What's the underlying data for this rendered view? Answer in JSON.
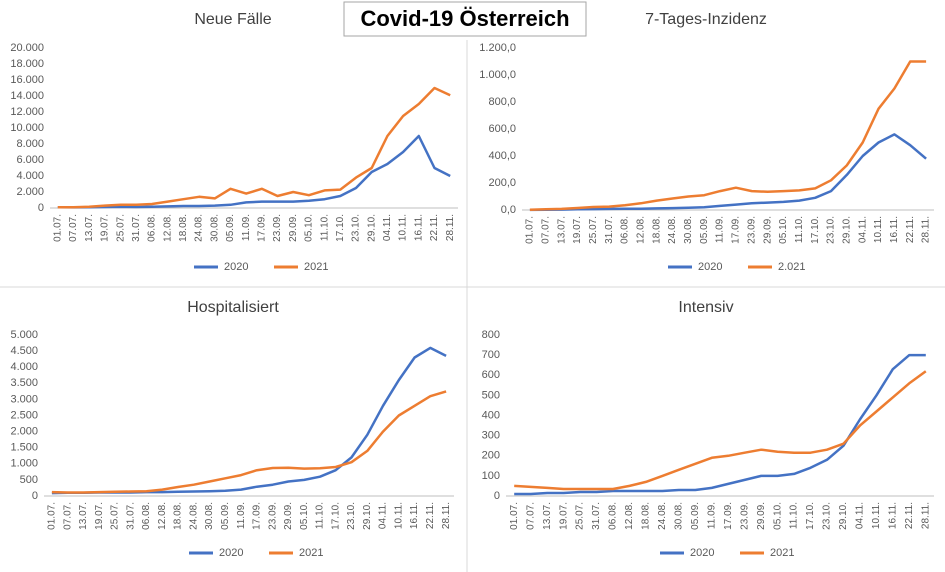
{
  "title": "Covid-19 Österreich",
  "chart_data": [
    {
      "type": "line",
      "title": "Neue Fälle",
      "categories": [
        "01.07.",
        "07.07.",
        "13.07.",
        "19.07.",
        "25.07.",
        "31.07.",
        "06.08.",
        "12.08.",
        "18.08.",
        "24.08.",
        "30.08.",
        "05.09.",
        "11.09.",
        "17.09.",
        "23.09.",
        "29.09.",
        "05.10.",
        "11.10.",
        "17.10.",
        "23.10.",
        "29.10.",
        "04.11.",
        "10.11.",
        "16.11.",
        "22.11.",
        "28.11."
      ],
      "series": [
        {
          "name": "2020",
          "color": "#4472c4",
          "values": [
            100,
            80,
            100,
            120,
            150,
            120,
            150,
            200,
            250,
            250,
            300,
            400,
            700,
            800,
            800,
            800,
            900,
            1100,
            1500,
            2500,
            4500,
            5500,
            7000,
            9000,
            5000,
            4000
          ]
        },
        {
          "name": "2021",
          "color": "#ed7d31",
          "values": [
            100,
            100,
            150,
            300,
            400,
            400,
            500,
            800,
            1100,
            1400,
            1200,
            2400,
            1800,
            2400,
            1500,
            2000,
            1600,
            2200,
            2300,
            3800,
            5000,
            9000,
            11500,
            13000,
            15000,
            14100
          ]
        }
      ],
      "ylim": [
        0,
        20000
      ],
      "yticks": [
        0,
        {
          "value": 2000,
          "label": "2.000"
        },
        {
          "value": 4000,
          "label": "4.000"
        },
        {
          "value": 6000,
          "label": "6.000"
        },
        {
          "value": 8000,
          "label": "8.000"
        },
        {
          "value": 10000,
          "label": "10.000"
        },
        {
          "value": 12000,
          "label": "12.000"
        },
        {
          "value": 14000,
          "label": "14.000"
        },
        {
          "value": 16000,
          "label": "16.000"
        },
        {
          "value": 18000,
          "label": "18.000"
        },
        {
          "value": 20000,
          "label": "20.000"
        }
      ],
      "grid": false
    },
    {
      "type": "line",
      "title": "7-Tages-Inzidenz",
      "categories": [
        "01.07.",
        "07.07.",
        "13.07.",
        "19.07.",
        "25.07.",
        "31.07.",
        "06.08.",
        "12.08.",
        "18.08.",
        "24.08.",
        "30.08.",
        "05.09.",
        "11.09.",
        "17.09.",
        "23.09.",
        "29.09.",
        "05.10.",
        "11.10.",
        "17.10.",
        "23.10.",
        "29.10.",
        "04.11.",
        "10.11.",
        "16.11.",
        "22.11.",
        "28.11."
      ],
      "series": [
        {
          "name": "2020",
          "color": "#4472c4",
          "values": [
            1,
            2,
            3,
            5,
            7,
            8,
            9,
            10,
            12,
            14,
            16,
            20,
            30,
            40,
            50,
            55,
            60,
            70,
            90,
            140,
            260,
            400,
            500,
            560,
            480,
            380
          ]
        },
        {
          "name": "2.021",
          "color": "#ed7d31",
          "values": [
            2,
            5,
            8,
            15,
            22,
            25,
            35,
            50,
            70,
            85,
            100,
            110,
            140,
            165,
            140,
            135,
            140,
            145,
            160,
            220,
            330,
            500,
            750,
            900,
            1100,
            1100
          ]
        }
      ],
      "ylim": [
        0,
        1200
      ],
      "yticks": [
        {
          "value": 0,
          "label": "0,0"
        },
        {
          "value": 200,
          "label": "200,0"
        },
        {
          "value": 400,
          "label": "400,0"
        },
        {
          "value": 600,
          "label": "600,0"
        },
        {
          "value": 800,
          "label": "800,0"
        },
        {
          "value": 1000,
          "label": "1.000,0"
        },
        {
          "value": 1200,
          "label": "1.200,0"
        }
      ],
      "grid": false
    },
    {
      "type": "line",
      "title": "Hospitalisiert",
      "categories": [
        "01.07.",
        "07.07.",
        "13.07.",
        "19.07.",
        "25.07.",
        "31.07.",
        "06.08.",
        "12.08.",
        "18.08.",
        "24.08.",
        "30.08.",
        "05.09.",
        "11.09.",
        "17.09.",
        "23.09.",
        "29.09.",
        "05.10.",
        "11.10.",
        "17.10.",
        "23.10.",
        "29.10.",
        "04.11.",
        "10.11.",
        "16.11.",
        "22.11.",
        "28.11."
      ],
      "series": [
        {
          "name": "2020",
          "color": "#4472c4",
          "values": [
            90,
            100,
            100,
            110,
            110,
            110,
            120,
            120,
            130,
            140,
            150,
            160,
            200,
            290,
            350,
            450,
            500,
            600,
            800,
            1200,
            1900,
            2800,
            3600,
            4300,
            4600,
            4350
          ]
        },
        {
          "name": "2021",
          "color": "#ed7d31",
          "values": [
            120,
            110,
            110,
            120,
            130,
            140,
            150,
            200,
            280,
            350,
            450,
            550,
            650,
            800,
            870,
            880,
            850,
            860,
            900,
            1050,
            1400,
            2000,
            2500,
            2800,
            3100,
            3250
          ]
        }
      ],
      "ylim": [
        0,
        5000
      ],
      "yticks": [
        0,
        500,
        {
          "value": 1000,
          "label": "1.000"
        },
        {
          "value": 1500,
          "label": "1.500"
        },
        {
          "value": 2000,
          "label": "2.000"
        },
        {
          "value": 2500,
          "label": "2.500"
        },
        {
          "value": 3000,
          "label": "3.000"
        },
        {
          "value": 3500,
          "label": "3.500"
        },
        {
          "value": 4000,
          "label": "4.000"
        },
        {
          "value": 4500,
          "label": "4.500"
        },
        {
          "value": 5000,
          "label": "5.000"
        }
      ],
      "grid": false
    },
    {
      "type": "line",
      "title": "Intensiv",
      "categories": [
        "01.07.",
        "07.07.",
        "13.07.",
        "19.07.",
        "25.07.",
        "31.07.",
        "06.08.",
        "12.08.",
        "18.08.",
        "24.08.",
        "30.08.",
        "05.09.",
        "11.09.",
        "17.09.",
        "23.09.",
        "29.09.",
        "05.10.",
        "11.10.",
        "17.10.",
        "23.10.",
        "29.10.",
        "04.11.",
        "10.11.",
        "16.11.",
        "22.11.",
        "28.11."
      ],
      "series": [
        {
          "name": "2020",
          "color": "#4472c4",
          "values": [
            10,
            10,
            15,
            15,
            20,
            20,
            25,
            25,
            25,
            25,
            30,
            30,
            40,
            60,
            80,
            100,
            100,
            110,
            140,
            180,
            250,
            380,
            500,
            630,
            700,
            700
          ]
        },
        {
          "name": "2021",
          "color": "#ed7d31",
          "values": [
            50,
            45,
            40,
            35,
            35,
            35,
            35,
            50,
            70,
            100,
            130,
            160,
            190,
            200,
            215,
            230,
            220,
            215,
            215,
            230,
            260,
            350,
            420,
            490,
            560,
            620
          ]
        }
      ],
      "ylim": [
        0,
        800
      ],
      "yticks": [
        0,
        100,
        200,
        300,
        400,
        500,
        600,
        700,
        800
      ],
      "grid": false
    }
  ]
}
